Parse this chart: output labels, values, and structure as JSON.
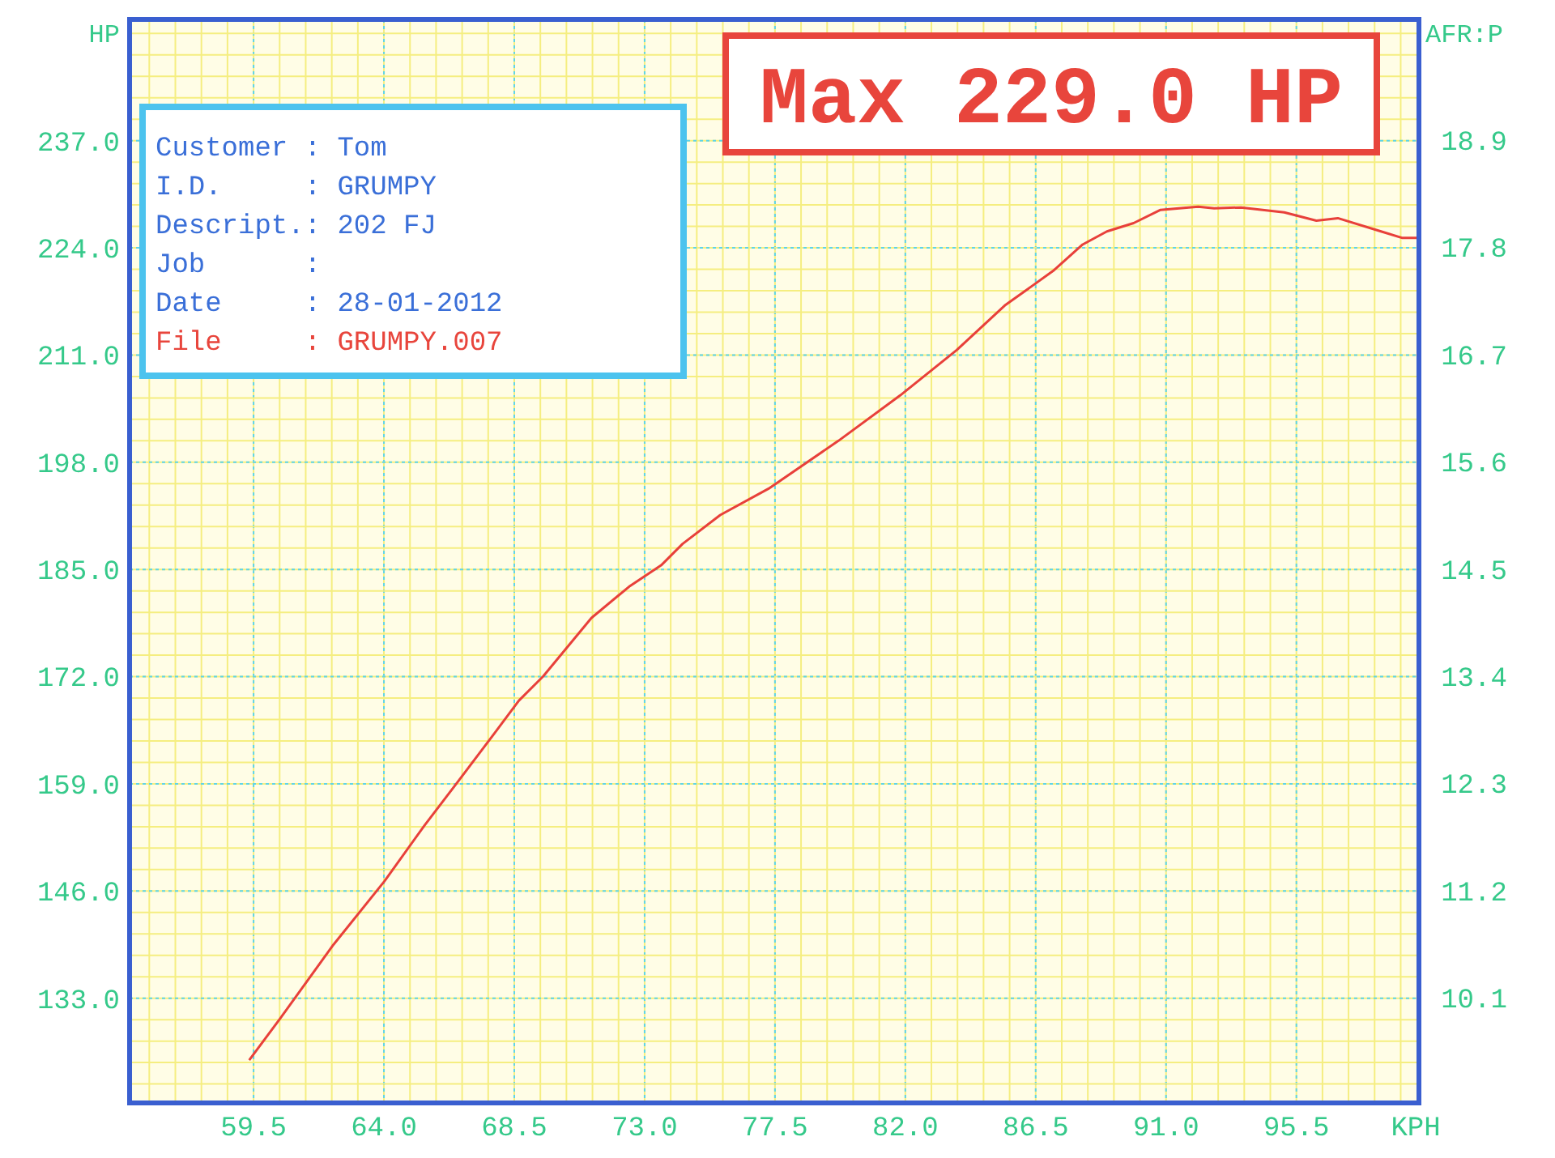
{
  "chart_data": {
    "type": "line",
    "xlabel": "KPH",
    "ylabel": "HP",
    "y2label": "AFR:P",
    "annotations": [
      "Max 229.0 HP",
      "Customer : Tom",
      "I.D.     : GRUMPY",
      "Descript.: 202 FJ",
      "Job      :",
      "Date     : 28-01-2012",
      "File     : GRUMPY.007"
    ],
    "x": [
      59.35,
      60.41,
      62.26,
      64.02,
      65.41,
      66.52,
      67.83,
      68.66,
      69.49,
      71.16,
      72.46,
      73.57,
      74.31,
      75.61,
      77.28,
      79.69,
      81.82,
      83.77,
      85.43,
      87.1,
      88.12,
      88.96,
      89.88,
      90.81,
      92.11,
      92.66,
      93.59,
      95.08,
      96.19,
      96.93,
      98.42,
      99.16,
      99.72
    ],
    "series": [
      {
        "color": "#e8403a",
        "values": [
          125.5,
          130.5,
          139.5,
          147.2,
          154.0,
          159.1,
          165.2,
          169.1,
          172.0,
          179.1,
          182.9,
          185.5,
          188.1,
          191.6,
          194.8,
          200.6,
          206.1,
          211.6,
          217.0,
          221.2,
          224.4,
          226.0,
          227.0,
          228.6,
          229.0,
          228.8,
          228.9,
          228.3,
          227.3,
          227.6,
          226.0,
          225.2,
          225.2
        ]
      }
    ],
    "xlim": [
      55.22,
      99.73
    ],
    "xticks": [
      59.5,
      {
        "value": 64,
        "label": "64.0"
      },
      68.5,
      {
        "value": 73,
        "label": "73.0"
      },
      77.5,
      {
        "value": 82,
        "label": "82.0"
      },
      86.5,
      {
        "value": 91,
        "label": "91.0"
      },
      95.5
    ],
    "ylim": [
      120.3,
      251.7
    ],
    "yticks": [
      {
        "value": 133,
        "label": "133.0"
      },
      {
        "value": 146,
        "label": "146.0"
      },
      {
        "value": 159,
        "label": "159.0"
      },
      {
        "value": 172,
        "label": "172.0"
      },
      {
        "value": 185,
        "label": "185.0"
      },
      {
        "value": 198,
        "label": "198.0"
      },
      {
        "value": 211,
        "label": "211.0"
      },
      {
        "value": 224,
        "label": "224.0"
      },
      {
        "value": 237,
        "label": "237.0"
      }
    ],
    "y2lim": [
      9.02,
      20.14
    ],
    "y2ticks": [
      10.1,
      11.2,
      12.3,
      13.4,
      14.5,
      15.6,
      16.7,
      17.8,
      18.9
    ],
    "grid": true,
    "marker": "none",
    "line_style": "solid"
  }
}
